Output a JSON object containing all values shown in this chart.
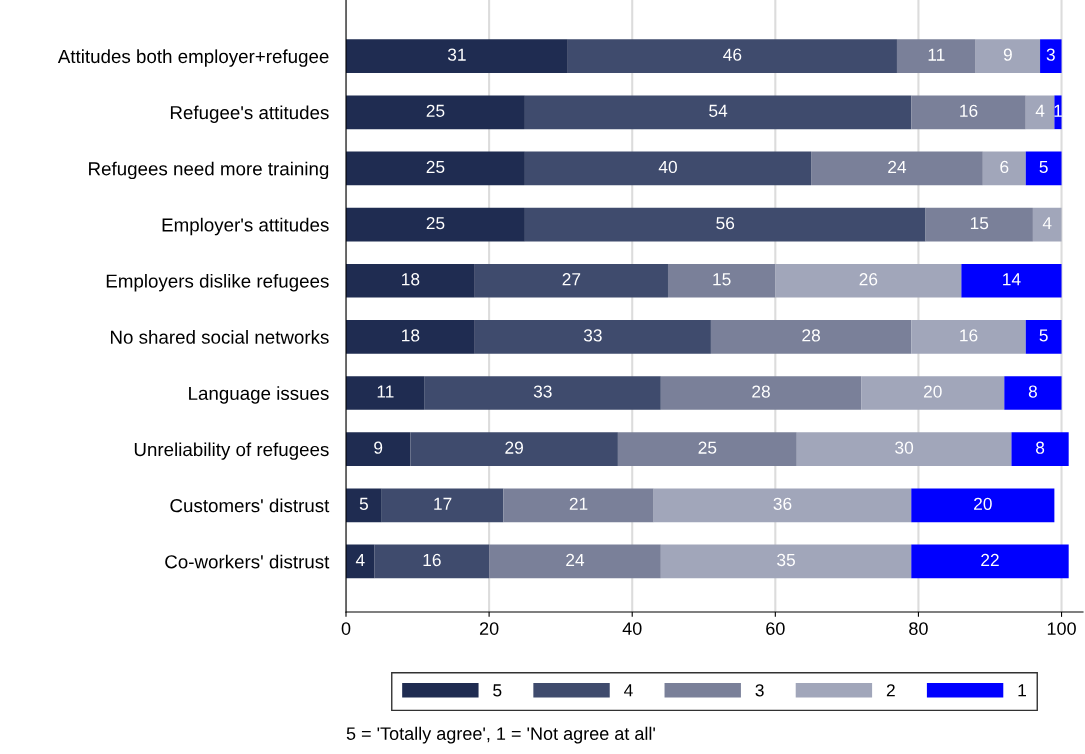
{
  "chart_data": {
    "type": "bar",
    "orientation": "horizontal",
    "stacked": true,
    "data_labels": true,
    "categories": [
      "Attitudes both employer+refugee",
      "Refugee's attitudes",
      "Refugees need more training",
      "Employer's attitudes",
      "Employers dislike refugees",
      "No shared social networks",
      "Language issues",
      "Unreliability of refugees",
      "Customers' distrust",
      "Co-workers' distrust"
    ],
    "series": [
      {
        "name": "5",
        "color": "#1f2c51",
        "values": [
          31,
          25,
          25,
          25,
          18,
          18,
          11,
          9,
          5,
          4
        ]
      },
      {
        "name": "4",
        "color": "#3f4b6d",
        "values": [
          46,
          54,
          40,
          56,
          27,
          33,
          33,
          29,
          17,
          16
        ]
      },
      {
        "name": "3",
        "color": "#7a8099",
        "values": [
          11,
          16,
          24,
          15,
          15,
          28,
          28,
          25,
          21,
          24
        ]
      },
      {
        "name": "2",
        "color": "#a1a6ba",
        "values": [
          9,
          4,
          6,
          4,
          26,
          16,
          20,
          30,
          36,
          35
        ]
      },
      {
        "name": "1",
        "color": "#0000ff",
        "values": [
          3,
          1,
          5,
          null,
          14,
          5,
          8,
          8,
          20,
          22
        ]
      }
    ],
    "xlim": [
      0,
      103
    ],
    "xticks": [
      0,
      20,
      40,
      60,
      80,
      100
    ],
    "grid": "x",
    "legend": "bottom",
    "annotations": [
      "5 = 'Totally agree', 1 = 'Not agree at all'"
    ]
  }
}
